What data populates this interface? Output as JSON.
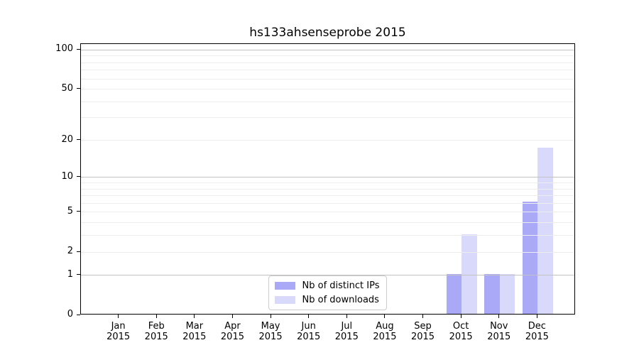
{
  "figure": {
    "title": "hs133ahsenseprobe 2015"
  },
  "chart_data": {
    "type": "bar",
    "title": "hs133ahsenseprobe 2015",
    "xlabel": "",
    "ylabel": "",
    "categories": [
      "Jan 2015",
      "Feb 2015",
      "Mar 2015",
      "Apr 2015",
      "May 2015",
      "Jun 2015",
      "Jul 2015",
      "Aug 2015",
      "Sep 2015",
      "Oct 2015",
      "Nov 2015",
      "Dec 2015"
    ],
    "series": [
      {
        "name": "Nb of distinct IPs",
        "color": "#a9a9f7",
        "values": [
          0,
          0,
          0,
          0,
          0,
          0,
          0,
          0,
          0,
          1,
          1,
          6
        ]
      },
      {
        "name": "Nb of downloads",
        "color": "#d9d9fb",
        "values": [
          0,
          0,
          0,
          0,
          0,
          0,
          0,
          0,
          0,
          3,
          1,
          17
        ]
      }
    ],
    "y_axis": {
      "scale": "log1p",
      "ylim": [
        0,
        111
      ],
      "ticks": [
        0,
        1,
        2,
        5,
        10,
        20,
        50,
        100
      ],
      "gridlines_major": [
        1,
        10,
        100
      ],
      "gridlines_minor": [
        2,
        3,
        4,
        5,
        6,
        7,
        8,
        9,
        20,
        30,
        40,
        50,
        60,
        70,
        80,
        90
      ]
    },
    "legend": {
      "position": "lower center",
      "items": [
        "Nb of distinct IPs",
        "Nb of downloads"
      ]
    },
    "colors": {
      "grid_major": "#c3c3c3",
      "grid_minor": "#ededed",
      "spine": "#000000",
      "text": "#000000",
      "legend_border": "#cccccc",
      "background": "#ffffff"
    }
  }
}
